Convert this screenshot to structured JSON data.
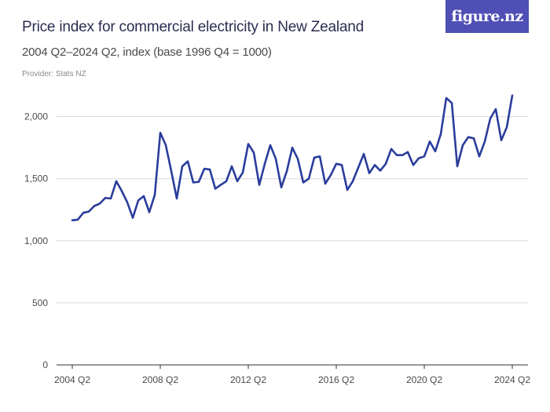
{
  "header": {
    "title": "Price index for commercial electricity in New Zealand",
    "subtitle": "2004 Q2–2024 Q2, index (base 1996 Q4 = 1000)",
    "provider": "Provider: Stats NZ",
    "logo_text": "figure.nz"
  },
  "colors": {
    "line": "#2b3d9c",
    "logo_background": "#4f4fb5",
    "grid": "#d9d9d9",
    "axis": "#333333"
  },
  "chart_data": {
    "type": "line",
    "title": "Price index for commercial electricity in New Zealand",
    "subtitle": "2004 Q2–2024 Q2, index (base 1996 Q4 = 1000)",
    "xlabel": "",
    "ylabel": "",
    "ylim": [
      0,
      2200
    ],
    "yticks": [
      0,
      500,
      1000,
      1500,
      2000
    ],
    "ytick_labels": [
      "0",
      "500",
      "1,000",
      "1,500",
      "2,000"
    ],
    "xtick_labels": [
      "2004 Q2",
      "2008 Q2",
      "2012 Q2",
      "2016 Q2",
      "2020 Q2",
      "2024 Q2"
    ],
    "x_start": "2004 Q2",
    "x_end": "2024 Q2",
    "grid": true,
    "legend": "none",
    "series": [
      {
        "values": [
          1165,
          1170,
          1225,
          1235,
          1280,
          1300,
          1345,
          1340,
          1480,
          1400,
          1310,
          1185,
          1325,
          1360,
          1230,
          1370,
          1870,
          1770,
          1560,
          1340,
          1600,
          1640,
          1470,
          1475,
          1580,
          1575,
          1420,
          1450,
          1480,
          1600,
          1480,
          1550,
          1780,
          1710,
          1450,
          1620,
          1770,
          1660,
          1430,
          1560,
          1750,
          1660,
          1470,
          1500,
          1670,
          1680,
          1460,
          1530,
          1620,
          1610,
          1410,
          1480,
          1590,
          1700,
          1545,
          1610,
          1565,
          1620,
          1740,
          1690,
          1690,
          1715,
          1610,
          1665,
          1680,
          1800,
          1720,
          1860,
          2150,
          2110,
          1600,
          1770,
          1835,
          1825,
          1680,
          1800,
          1985,
          2060,
          1810,
          1915,
          2170
        ]
      }
    ]
  }
}
